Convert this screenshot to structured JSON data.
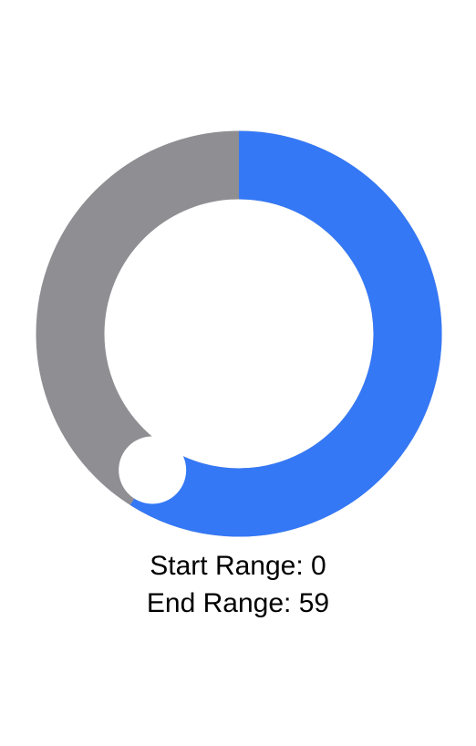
{
  "slider": {
    "track_color": "#8E8E93",
    "fill_color": "#3478F6",
    "knob_color": "#FFFFFF",
    "start_value": 0,
    "end_value": 59,
    "min": 0,
    "max": 100
  },
  "labels": {
    "start_prefix": "Start Range: ",
    "end_prefix": "End Range: "
  }
}
